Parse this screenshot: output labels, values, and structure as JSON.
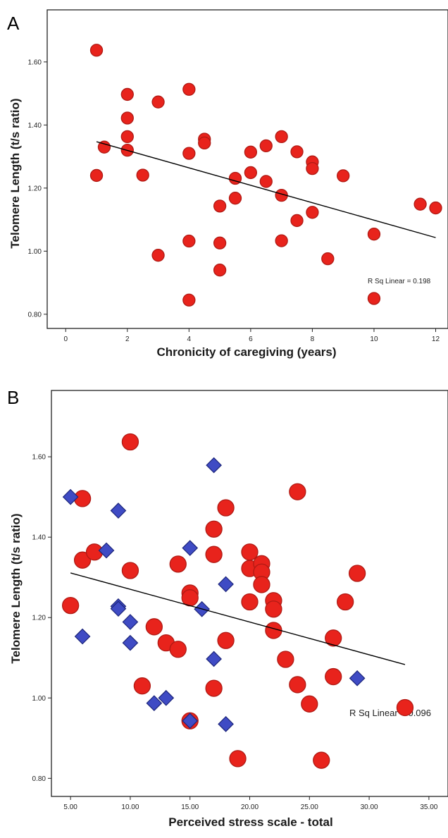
{
  "chart_data": [
    {
      "panel": "A",
      "type": "scatter",
      "xlabel": "Chronicity of caregiving (years)",
      "ylabel": "Telomere Length (t/s ratio)",
      "xlim": [
        -0.6,
        12.4
      ],
      "ylim": [
        0.755,
        1.765
      ],
      "xticks": [
        0,
        2,
        4,
        6,
        8,
        10,
        12
      ],
      "xtick_labels": [
        "0",
        "2",
        "4",
        "6",
        "8",
        "10",
        "12"
      ],
      "yticks": [
        0.8,
        1.0,
        1.2,
        1.4,
        1.6
      ],
      "ytick_labels": [
        "0.80",
        "1.00",
        "1.20",
        "1.40",
        "1.60"
      ],
      "annotation": "R Sq Linear = 0.198",
      "fit_line": {
        "x": [
          1,
          12
        ],
        "y": [
          1.347,
          1.043
        ]
      },
      "series": [
        {
          "marker": "circle",
          "color": "#e8231c",
          "points": [
            [
              1.0,
              1.637
            ],
            [
              1.0,
              1.24
            ],
            [
              1.25,
              1.33
            ],
            [
              2.0,
              1.497
            ],
            [
              2.0,
              1.422
            ],
            [
              2.0,
              1.363
            ],
            [
              2.0,
              1.32
            ],
            [
              2.5,
              1.241
            ],
            [
              3.0,
              1.473
            ],
            [
              3.0,
              0.987
            ],
            [
              4.0,
              1.513
            ],
            [
              4.0,
              1.31
            ],
            [
              4.0,
              1.032
            ],
            [
              4.0,
              0.845
            ],
            [
              4.5,
              1.355
            ],
            [
              4.5,
              1.343
            ],
            [
              5.0,
              1.143
            ],
            [
              5.0,
              1.026
            ],
            [
              5.0,
              0.94
            ],
            [
              5.5,
              1.231
            ],
            [
              5.5,
              1.168
            ],
            [
              6.0,
              1.314
            ],
            [
              6.0,
              1.249
            ],
            [
              6.5,
              1.334
            ],
            [
              6.5,
              1.221
            ],
            [
              7.0,
              1.363
            ],
            [
              7.0,
              1.177
            ],
            [
              7.0,
              1.033
            ],
            [
              7.5,
              1.315
            ],
            [
              7.5,
              1.097
            ],
            [
              8.0,
              1.283
            ],
            [
              8.0,
              1.262
            ],
            [
              8.0,
              1.123
            ],
            [
              8.5,
              0.976
            ],
            [
              9.0,
              1.239
            ],
            [
              10.0,
              1.054
            ],
            [
              10.0,
              0.85
            ],
            [
              11.5,
              1.149
            ],
            [
              12.0,
              1.137
            ]
          ]
        }
      ]
    },
    {
      "panel": "B",
      "type": "scatter",
      "xlabel": "Perceived stress scale - total",
      "ylabel": "Telomere Length (t/s ratio)",
      "xlim": [
        3.4,
        36.6
      ],
      "ylim": [
        0.755,
        1.765
      ],
      "xticks": [
        5,
        10,
        15,
        20,
        25,
        30,
        35
      ],
      "xtick_labels": [
        "5.00",
        "10.00",
        "15.00",
        "20.00",
        "25.00",
        "30.00",
        "35.00"
      ],
      "yticks": [
        0.8,
        1.0,
        1.2,
        1.4,
        1.6
      ],
      "ytick_labels": [
        "0.80",
        "1.00",
        "1.20",
        "1.40",
        "1.60"
      ],
      "annotation": "R Sq Linear = 0.096",
      "fit_line": {
        "x": [
          5,
          33
        ],
        "y": [
          1.311,
          1.083
        ]
      },
      "series": [
        {
          "marker": "circle",
          "color": "#e8231c",
          "points": [
            [
              5.0,
              1.23
            ],
            [
              6.0,
              1.496
            ],
            [
              6.0,
              1.343
            ],
            [
              7.0,
              1.363
            ],
            [
              10.0,
              1.637
            ],
            [
              10.0,
              1.317
            ],
            [
              11.0,
              1.03
            ],
            [
              12.0,
              1.177
            ],
            [
              13.0,
              1.137
            ],
            [
              14.0,
              1.333
            ],
            [
              14.0,
              1.121
            ],
            [
              15.0,
              1.261
            ],
            [
              15.0,
              1.249
            ],
            [
              15.0,
              0.943
            ],
            [
              17.0,
              1.42
            ],
            [
              17.0,
              1.357
            ],
            [
              17.0,
              1.024
            ],
            [
              18.0,
              1.473
            ],
            [
              18.0,
              1.143
            ],
            [
              19.0,
              0.849
            ],
            [
              20.0,
              1.363
            ],
            [
              20.0,
              1.322
            ],
            [
              20.0,
              1.239
            ],
            [
              21.0,
              1.334
            ],
            [
              21.0,
              1.313
            ],
            [
              21.0,
              1.282
            ],
            [
              22.0,
              1.242
            ],
            [
              22.0,
              1.221
            ],
            [
              22.0,
              1.168
            ],
            [
              23.0,
              1.096
            ],
            [
              24.0,
              1.513
            ],
            [
              24.0,
              1.033
            ],
            [
              25.0,
              0.985
            ],
            [
              26.0,
              0.845
            ],
            [
              27.0,
              1.149
            ],
            [
              27.0,
              1.053
            ],
            [
              28.0,
              1.239
            ],
            [
              29.0,
              1.31
            ],
            [
              33.0,
              0.976
            ]
          ]
        },
        {
          "marker": "diamond",
          "color": "#3f4bc4",
          "points": [
            [
              5.0,
              1.5
            ],
            [
              6.0,
              1.153
            ],
            [
              8.0,
              1.367
            ],
            [
              9.0,
              1.466
            ],
            [
              9.0,
              1.228
            ],
            [
              9.0,
              1.222
            ],
            [
              10.0,
              1.189
            ],
            [
              10.0,
              1.137
            ],
            [
              12.0,
              0.987
            ],
            [
              13.0,
              1.0
            ],
            [
              15.0,
              1.373
            ],
            [
              15.0,
              0.943
            ],
            [
              16.0,
              1.221
            ],
            [
              17.0,
              1.579
            ],
            [
              17.0,
              1.097
            ],
            [
              18.0,
              1.283
            ],
            [
              18.0,
              0.935
            ],
            [
              29.0,
              1.049
            ]
          ]
        }
      ]
    }
  ]
}
